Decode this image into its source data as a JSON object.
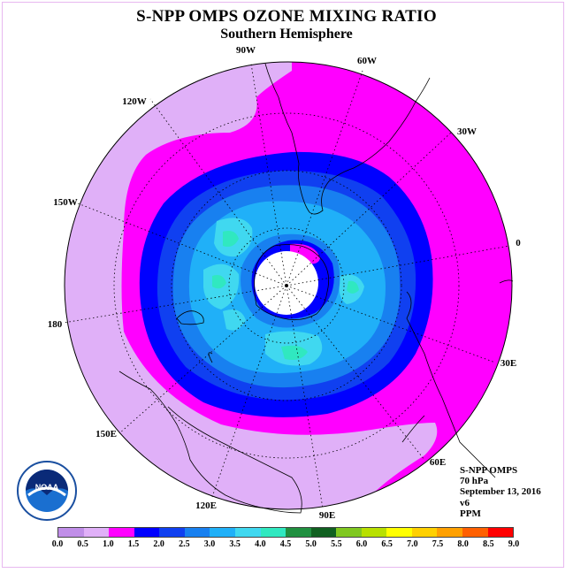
{
  "title": "S-NPP OMPS OZONE MIXING RATIO",
  "subtitle": "Southern Hemisphere",
  "logo": {
    "text": "NOAA",
    "name": "noaa-logo"
  },
  "info": {
    "line1": "S-NPP OMPS",
    "line2": "70 hPa",
    "line3": "September 13, 2016",
    "line4": "v6",
    "line5": "PPM"
  },
  "map": {
    "projection": "south polar stereographic",
    "longitude_labels": [
      "90W",
      "60W",
      "30W",
      "0",
      "30E",
      "60E",
      "90E",
      "120E",
      "150E",
      "180",
      "150W",
      "120W"
    ]
  },
  "colorbar": {
    "unit": "PPM",
    "ticks": [
      "0.0",
      "0.5",
      "1.0",
      "1.5",
      "2.0",
      "2.5",
      "3.0",
      "3.5",
      "4.0",
      "4.5",
      "5.0",
      "5.5",
      "6.0",
      "6.5",
      "7.0",
      "7.5",
      "8.0",
      "8.5",
      "9.0"
    ],
    "colors": [
      "#c08ee8",
      "#e0b0f8",
      "#ff00ff",
      "#0000ff",
      "#1040f0",
      "#1880f0",
      "#20b0f8",
      "#40d8f0",
      "#30e8c0",
      "#209040",
      "#106020",
      "#80c820",
      "#b8e000",
      "#ffff00",
      "#ffd000",
      "#ffa000",
      "#ff6000",
      "#ff0000",
      "#906040"
    ]
  }
}
